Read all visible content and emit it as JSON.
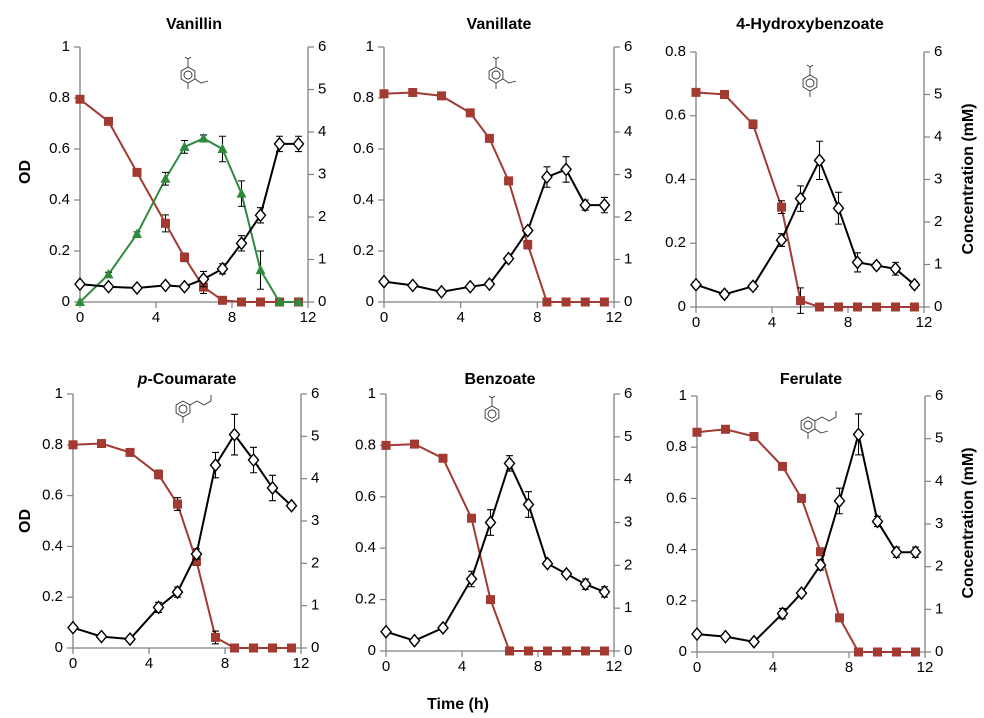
{
  "figure": {
    "left_axis_label": "OD",
    "right_axis_label": "Concentration (mM)",
    "x_axis_label": "Time (h)",
    "colors": {
      "od": "#000000",
      "substrate": "#A33A32",
      "intermediate": "#2E8B3E",
      "axis": "#808080"
    }
  },
  "chart_data": [
    {
      "type": "line",
      "title": "Vanillin",
      "xlim": [
        0,
        12
      ],
      "xticks": [
        0,
        4,
        8,
        12
      ],
      "ylim": [
        0,
        1
      ],
      "yticks": [
        0,
        0.2,
        0.4,
        0.6,
        0.8,
        1
      ],
      "ytick_labels": [
        "0",
        "0.2",
        "0.4",
        "0.6",
        "0.8",
        "1"
      ],
      "y2lim": [
        0,
        6
      ],
      "y2ticks": [
        0,
        1,
        2,
        3,
        4,
        5,
        6
      ],
      "structure_icon": "vanillin-structure-icon",
      "series": [
        {
          "axis": "left",
          "marker": "diamond-open",
          "color": "#000000",
          "x": [
            0,
            1.5,
            3,
            4.5,
            5.5,
            6.5,
            7.5,
            8.5,
            9.5,
            10.5,
            11.5
          ],
          "y": [
            0.07,
            0.06,
            0.055,
            0.065,
            0.06,
            0.09,
            0.13,
            0.23,
            0.34,
            0.62,
            0.62
          ],
          "err": [
            0.01,
            0.01,
            0.01,
            0.01,
            0.01,
            0.03,
            0.02,
            0.03,
            0.03,
            0.03,
            0.03
          ]
        },
        {
          "axis": "right",
          "marker": "square",
          "color": "#A33A32",
          "x": [
            0,
            1.5,
            3,
            4.5,
            5.5,
            6.5,
            7.5,
            8.5,
            9.5,
            10.5,
            11.5
          ],
          "y": [
            4.77,
            4.25,
            3.05,
            1.85,
            1.05,
            0.35,
            0.04,
            0,
            0,
            0,
            0
          ],
          "err": [
            0.05,
            0.05,
            0.05,
            0.2,
            0.1,
            0.15,
            0.05,
            0,
            0,
            0,
            0
          ]
        },
        {
          "axis": "right",
          "marker": "triangle",
          "color": "#2E8B3E",
          "x": [
            0,
            1.5,
            3,
            4.5,
            5.5,
            6.5,
            7.5,
            8.5,
            9.5,
            10.5,
            11.5
          ],
          "y": [
            0,
            0.65,
            1.6,
            2.9,
            3.65,
            3.85,
            3.6,
            2.55,
            0.75,
            0,
            0
          ],
          "err": [
            0,
            0.05,
            0.05,
            0.15,
            0.15,
            0.08,
            0.3,
            0.3,
            0.45,
            0,
            0
          ]
        }
      ]
    },
    {
      "type": "line",
      "title": "Vanillate",
      "xlim": [
        0,
        12
      ],
      "xticks": [
        0,
        4,
        8,
        12
      ],
      "ylim": [
        0,
        1
      ],
      "yticks": [
        0,
        0.2,
        0.4,
        0.6,
        0.8,
        1
      ],
      "ytick_labels": [
        "0",
        "0.2",
        "0.4",
        "0.6",
        "0.8",
        "1"
      ],
      "y2lim": [
        0,
        6
      ],
      "y2ticks": [
        0,
        1,
        2,
        3,
        4,
        5,
        6
      ],
      "structure_icon": "vanillate-structure-icon",
      "series": [
        {
          "axis": "left",
          "marker": "diamond-open",
          "color": "#000000",
          "x": [
            0,
            1.5,
            3,
            4.5,
            5.5,
            6.5,
            7.5,
            8.5,
            9.5,
            10.5,
            11.5
          ],
          "y": [
            0.08,
            0.065,
            0.04,
            0.06,
            0.07,
            0.17,
            0.28,
            0.49,
            0.52,
            0.38,
            0.38
          ],
          "err": [
            0.01,
            0.01,
            0.01,
            0.01,
            0.01,
            0.01,
            0.01,
            0.04,
            0.05,
            0.02,
            0.03
          ]
        },
        {
          "axis": "right",
          "marker": "square",
          "color": "#A33A32",
          "x": [
            0,
            1.5,
            3,
            4.5,
            5.5,
            6.5,
            7.5,
            8.5,
            9.5,
            10.5,
            11.5
          ],
          "y": [
            4.9,
            4.93,
            4.85,
            4.45,
            3.85,
            2.85,
            1.35,
            0,
            0,
            0,
            0
          ],
          "err": [
            0,
            0,
            0,
            0,
            0,
            0,
            0.1,
            0,
            0,
            0,
            0
          ]
        }
      ]
    },
    {
      "type": "line",
      "title": "4-Hydroxybenzoate",
      "xlim": [
        0,
        12
      ],
      "xticks": [
        0,
        4,
        8,
        12
      ],
      "ylim": [
        0,
        0.8
      ],
      "yticks": [
        0,
        0.2,
        0.4,
        0.6,
        0.8
      ],
      "ytick_labels": [
        "0",
        "0.2",
        "0.4",
        "0.6",
        "0.8"
      ],
      "y2lim": [
        0,
        6
      ],
      "y2ticks": [
        0,
        1,
        2,
        3,
        4,
        5,
        6
      ],
      "ylabel": "Concentration (mM)",
      "structure_icon": "hydroxybenzoate-structure-icon",
      "series": [
        {
          "axis": "left",
          "marker": "diamond-open",
          "color": "#000000",
          "x": [
            0,
            1.5,
            3,
            4.5,
            5.5,
            6.5,
            7.5,
            8.5,
            9.5,
            10.5,
            11.5
          ],
          "y": [
            0.07,
            0.04,
            0.065,
            0.21,
            0.34,
            0.46,
            0.31,
            0.14,
            0.13,
            0.12,
            0.07
          ],
          "err": [
            0.01,
            0.01,
            0.01,
            0.02,
            0.04,
            0.06,
            0.05,
            0.03,
            0.01,
            0.02,
            0.01
          ]
        },
        {
          "axis": "right",
          "marker": "square",
          "color": "#A33A32",
          "x": [
            0,
            1.5,
            3,
            4.5,
            5.5,
            6.5,
            7.5,
            8.5,
            9.5,
            10.5,
            11.5
          ],
          "y": [
            5.05,
            5.0,
            4.3,
            2.35,
            0.15,
            0,
            0,
            0,
            0,
            0,
            0
          ],
          "err": [
            0,
            0,
            0.1,
            0.15,
            0.3,
            0,
            0,
            0,
            0,
            0,
            0
          ]
        }
      ]
    },
    {
      "type": "line",
      "title": "p-Coumarate",
      "title_parts": [
        "p",
        "-Coumarate"
      ],
      "xlim": [
        0,
        12
      ],
      "xticks": [
        0,
        4,
        8,
        12
      ],
      "ylim": [
        0,
        1
      ],
      "yticks": [
        0,
        0.2,
        0.4,
        0.6,
        0.8,
        1
      ],
      "ytick_labels": [
        "0",
        "0.2",
        "0.4",
        "0.6",
        "0.8",
        "1"
      ],
      "y2lim": [
        0,
        6
      ],
      "y2ticks": [
        0,
        1,
        2,
        3,
        4,
        5,
        6
      ],
      "structure_icon": "coumarate-structure-icon",
      "series": [
        {
          "axis": "left",
          "marker": "diamond-open",
          "color": "#000000",
          "x": [
            0,
            1.5,
            3,
            4.5,
            5.5,
            6.5,
            7.5,
            8.5,
            9.5,
            10.5,
            11.5
          ],
          "y": [
            0.08,
            0.045,
            0.035,
            0.16,
            0.22,
            0.37,
            0.72,
            0.84,
            0.74,
            0.63,
            0.56
          ],
          "err": [
            0.01,
            0.01,
            0.01,
            0.02,
            0.02,
            0.02,
            0.05,
            0.08,
            0.05,
            0.05,
            0.01
          ]
        },
        {
          "axis": "right",
          "marker": "square",
          "color": "#A33A32",
          "x": [
            0,
            1.5,
            3,
            4.5,
            5.5,
            6.5,
            7.5,
            8.5,
            9.5,
            10.5,
            11.5
          ],
          "y": [
            4.8,
            4.83,
            4.62,
            4.1,
            3.4,
            2.05,
            0.25,
            0,
            0,
            0,
            0
          ],
          "err": [
            0,
            0,
            0,
            0.1,
            0.15,
            0.1,
            0.15,
            0,
            0,
            0,
            0
          ]
        }
      ]
    },
    {
      "type": "line",
      "title": "Benzoate",
      "xlim": [
        0,
        12
      ],
      "xticks": [
        0,
        4,
        8,
        12
      ],
      "ylim": [
        0,
        1
      ],
      "yticks": [
        0,
        0.2,
        0.4,
        0.6,
        0.8,
        1
      ],
      "ytick_labels": [
        "0",
        "0.2",
        "0.4",
        "0.6",
        "0.8",
        "1"
      ],
      "y2lim": [
        0,
        6
      ],
      "y2ticks": [
        0,
        1,
        2,
        3,
        4,
        5,
        6
      ],
      "structure_icon": "benzoate-structure-icon",
      "series": [
        {
          "axis": "left",
          "marker": "diamond-open",
          "color": "#000000",
          "x": [
            0,
            1.5,
            3,
            4.5,
            5.5,
            6.5,
            7.5,
            8.5,
            9.5,
            10.5,
            11.5
          ],
          "y": [
            0.075,
            0.04,
            0.09,
            0.28,
            0.5,
            0.73,
            0.57,
            0.34,
            0.3,
            0.26,
            0.23
          ],
          "err": [
            0.01,
            0.01,
            0.01,
            0.03,
            0.05,
            0.03,
            0.05,
            0.01,
            0.01,
            0.02,
            0.02
          ]
        },
        {
          "axis": "right",
          "marker": "square",
          "color": "#A33A32",
          "x": [
            0,
            1.5,
            3,
            4.5,
            5.5,
            6.5,
            7.5,
            8.5,
            9.5,
            10.5,
            11.5
          ],
          "y": [
            4.8,
            4.83,
            4.5,
            3.1,
            1.2,
            0,
            0,
            0,
            0,
            0,
            0
          ],
          "err": [
            0,
            0,
            0,
            0,
            0,
            0,
            0,
            0,
            0,
            0,
            0
          ]
        }
      ]
    },
    {
      "type": "line",
      "title": "Ferulate",
      "xlim": [
        0,
        12
      ],
      "xticks": [
        0,
        4,
        8,
        12
      ],
      "ylim": [
        0,
        1
      ],
      "yticks": [
        0,
        0.2,
        0.4,
        0.6,
        0.8,
        1
      ],
      "ytick_labels": [
        "0",
        "0.2",
        "0.4",
        "0.6",
        "0.8",
        "1"
      ],
      "y2lim": [
        0,
        6
      ],
      "y2ticks": [
        0,
        1,
        2,
        3,
        4,
        5,
        6
      ],
      "ylabel": "Concentration (mM)",
      "structure_icon": "ferulate-structure-icon",
      "series": [
        {
          "axis": "left",
          "marker": "diamond-open",
          "color": "#000000",
          "x": [
            0,
            1.5,
            3,
            4.5,
            5.5,
            6.5,
            7.5,
            8.5,
            9.5,
            10.5,
            11.5
          ],
          "y": [
            0.07,
            0.06,
            0.04,
            0.15,
            0.23,
            0.34,
            0.59,
            0.85,
            0.51,
            0.39,
            0.39
          ],
          "err": [
            0.01,
            0.01,
            0.01,
            0.02,
            0.01,
            0.02,
            0.05,
            0.08,
            0.02,
            0.02,
            0.02
          ]
        },
        {
          "axis": "right",
          "marker": "square",
          "color": "#A33A32",
          "x": [
            0,
            1.5,
            3,
            4.5,
            5.5,
            6.5,
            7.5,
            8.5,
            9.5,
            10.5,
            11.5
          ],
          "y": [
            5.15,
            5.22,
            5.05,
            4.35,
            3.6,
            2.35,
            0.8,
            0,
            0,
            0,
            0
          ],
          "err": [
            0,
            0,
            0,
            0,
            0,
            0,
            0.05,
            0,
            0,
            0,
            0
          ]
        }
      ]
    }
  ]
}
